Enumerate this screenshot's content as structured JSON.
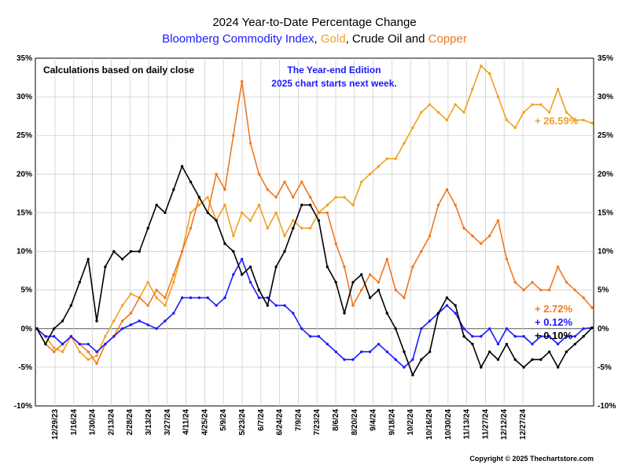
{
  "chart_data": {
    "type": "line",
    "title": "2024 Year-to-Date Percentage Change",
    "subtitle_parts": [
      {
        "text": "Bloomberg Commodity Index",
        "color": "#1a1aff"
      },
      {
        "text": ", ",
        "color": "#000000"
      },
      {
        "text": "Gold",
        "color": "#f0a020"
      },
      {
        "text": ", ",
        "color": "#000000"
      },
      {
        "text": "Crude Oil",
        "color": "#000000"
      },
      {
        "text": " and ",
        "color": "#000000"
      },
      {
        "text": "Copper",
        "color": "#f07820"
      }
    ],
    "annotation_left": "Calculations based on daily close",
    "annotation_center": [
      "The Year-end Edition",
      "2025 chart starts next week."
    ],
    "copyright": "Copyright © 2025 Thechartstore.com",
    "ylim": [
      -10,
      35
    ],
    "ytick_step": 5,
    "ytick_labels": [
      "35%",
      "30%",
      "25%",
      "20%",
      "15%",
      "10%",
      "5%",
      "0%",
      "-5%",
      "-10%"
    ],
    "grid": true,
    "x_tick_labels": [
      "12/29/23",
      "1/16/24",
      "1/30/24",
      "2/13/24",
      "2/28/24",
      "3/13/24",
      "3/27/24",
      "4/11/24",
      "4/25/24",
      "5/9/24",
      "5/23/24",
      "6/7/24",
      "6/24/24",
      "7/9/24",
      "7/23/24",
      "8/6/24",
      "8/20/24",
      "9/4/24",
      "9/18/24",
      "10/2/24",
      "10/16/24",
      "10/30/24",
      "11/13/24",
      "11/27/24",
      "12/12/24",
      "12/27/24"
    ],
    "series": [
      {
        "name": "Gold",
        "color": "#f0a020",
        "end_label": "+ 26.59%",
        "points": [
          [
            0,
            0
          ],
          [
            1,
            -1
          ],
          [
            2,
            -2.5
          ],
          [
            3,
            -3
          ],
          [
            4,
            -1
          ],
          [
            5,
            -3
          ],
          [
            6,
            -4
          ],
          [
            7,
            -3.5
          ],
          [
            8,
            -1
          ],
          [
            9,
            1
          ],
          [
            10,
            3
          ],
          [
            11,
            4.5
          ],
          [
            12,
            4
          ],
          [
            13,
            6
          ],
          [
            14,
            4
          ],
          [
            15,
            3
          ],
          [
            16,
            6
          ],
          [
            17,
            10
          ],
          [
            18,
            15
          ],
          [
            19,
            16
          ],
          [
            20,
            17
          ],
          [
            21,
            14
          ],
          [
            22,
            16
          ],
          [
            23,
            12
          ],
          [
            24,
            15
          ],
          [
            25,
            14
          ],
          [
            26,
            16
          ],
          [
            27,
            13
          ],
          [
            28,
            15
          ],
          [
            29,
            12
          ],
          [
            30,
            14
          ],
          [
            31,
            13
          ],
          [
            32,
            13
          ],
          [
            33,
            15
          ],
          [
            34,
            16
          ],
          [
            35,
            17
          ],
          [
            36,
            17
          ],
          [
            37,
            16
          ],
          [
            38,
            19
          ],
          [
            39,
            20
          ],
          [
            40,
            21
          ],
          [
            41,
            22
          ],
          [
            42,
            22
          ],
          [
            43,
            24
          ],
          [
            44,
            26
          ],
          [
            45,
            28
          ],
          [
            46,
            29
          ],
          [
            47,
            28
          ],
          [
            48,
            27
          ],
          [
            49,
            29
          ],
          [
            50,
            28
          ],
          [
            51,
            31
          ],
          [
            52,
            34
          ],
          [
            53,
            33
          ],
          [
            54,
            30
          ],
          [
            55,
            27
          ],
          [
            56,
            26
          ],
          [
            57,
            28
          ],
          [
            58,
            29
          ],
          [
            59,
            29
          ],
          [
            60,
            28
          ],
          [
            61,
            31
          ],
          [
            62,
            28
          ],
          [
            63,
            27
          ],
          [
            64,
            27
          ],
          [
            65,
            26.59
          ]
        ]
      },
      {
        "name": "Copper",
        "color": "#f07820",
        "end_label": "+ 2.72%",
        "points": [
          [
            0,
            0
          ],
          [
            1,
            -2
          ],
          [
            2,
            -3
          ],
          [
            3,
            -2
          ],
          [
            4,
            -1
          ],
          [
            5,
            -2
          ],
          [
            6,
            -3
          ],
          [
            7,
            -4.5
          ],
          [
            8,
            -2
          ],
          [
            9,
            -1
          ],
          [
            10,
            1
          ],
          [
            11,
            2
          ],
          [
            12,
            4
          ],
          [
            13,
            3
          ],
          [
            14,
            5
          ],
          [
            15,
            4
          ],
          [
            16,
            7
          ],
          [
            17,
            10
          ],
          [
            18,
            13
          ],
          [
            19,
            17
          ],
          [
            20,
            15
          ],
          [
            21,
            20
          ],
          [
            22,
            18
          ],
          [
            23,
            25
          ],
          [
            24,
            32
          ],
          [
            25,
            24
          ],
          [
            26,
            20
          ],
          [
            27,
            18
          ],
          [
            28,
            17
          ],
          [
            29,
            19
          ],
          [
            30,
            17
          ],
          [
            31,
            19
          ],
          [
            32,
            17
          ],
          [
            33,
            15
          ],
          [
            34,
            15
          ],
          [
            35,
            11
          ],
          [
            36,
            8
          ],
          [
            37,
            3
          ],
          [
            38,
            5
          ],
          [
            39,
            7
          ],
          [
            40,
            6
          ],
          [
            41,
            9
          ],
          [
            42,
            5
          ],
          [
            43,
            4
          ],
          [
            44,
            8
          ],
          [
            45,
            10
          ],
          [
            46,
            12
          ],
          [
            47,
            16
          ],
          [
            48,
            18
          ],
          [
            49,
            16
          ],
          [
            50,
            13
          ],
          [
            51,
            12
          ],
          [
            52,
            11
          ],
          [
            53,
            12
          ],
          [
            54,
            14
          ],
          [
            55,
            9
          ],
          [
            56,
            6
          ],
          [
            57,
            5
          ],
          [
            58,
            6
          ],
          [
            59,
            5
          ],
          [
            60,
            5
          ],
          [
            61,
            8
          ],
          [
            62,
            6
          ],
          [
            63,
            5
          ],
          [
            64,
            4
          ],
          [
            65,
            2.72
          ]
        ]
      },
      {
        "name": "Bloomberg Commodity Index",
        "color": "#1a1aff",
        "end_label": "+ 0.12%",
        "points": [
          [
            0,
            0
          ],
          [
            1,
            -1
          ],
          [
            2,
            -1
          ],
          [
            3,
            -2
          ],
          [
            4,
            -1
          ],
          [
            5,
            -2
          ],
          [
            6,
            -2
          ],
          [
            7,
            -3
          ],
          [
            8,
            -2
          ],
          [
            9,
            -1
          ],
          [
            10,
            0
          ],
          [
            11,
            0.5
          ],
          [
            12,
            1
          ],
          [
            13,
            0.5
          ],
          [
            14,
            0
          ],
          [
            15,
            1
          ],
          [
            16,
            2
          ],
          [
            17,
            4
          ],
          [
            18,
            4
          ],
          [
            19,
            4
          ],
          [
            20,
            4
          ],
          [
            21,
            3
          ],
          [
            22,
            4
          ],
          [
            23,
            7
          ],
          [
            24,
            9
          ],
          [
            25,
            6
          ],
          [
            26,
            4
          ],
          [
            27,
            4
          ],
          [
            28,
            3
          ],
          [
            29,
            3
          ],
          [
            30,
            2
          ],
          [
            31,
            0
          ],
          [
            32,
            -1
          ],
          [
            33,
            -1
          ],
          [
            34,
            -2
          ],
          [
            35,
            -3
          ],
          [
            36,
            -4
          ],
          [
            37,
            -4
          ],
          [
            38,
            -3
          ],
          [
            39,
            -3
          ],
          [
            40,
            -2
          ],
          [
            41,
            -3
          ],
          [
            42,
            -4
          ],
          [
            43,
            -5
          ],
          [
            44,
            -4
          ],
          [
            45,
            0
          ],
          [
            46,
            1
          ],
          [
            47,
            2
          ],
          [
            48,
            3
          ],
          [
            49,
            2
          ],
          [
            50,
            0
          ],
          [
            51,
            -1
          ],
          [
            52,
            -1
          ],
          [
            53,
            0
          ],
          [
            54,
            -2
          ],
          [
            55,
            0
          ],
          [
            56,
            -1
          ],
          [
            57,
            -1
          ],
          [
            58,
            -2
          ],
          [
            59,
            -1
          ],
          [
            60,
            -1
          ],
          [
            61,
            -2
          ],
          [
            62,
            -1
          ],
          [
            63,
            -1
          ],
          [
            64,
            0
          ],
          [
            65,
            0.12
          ]
        ]
      },
      {
        "name": "Crude Oil",
        "color": "#000000",
        "end_label": "+ 0.10%",
        "points": [
          [
            0,
            0
          ],
          [
            1,
            -2
          ],
          [
            2,
            0
          ],
          [
            3,
            1
          ],
          [
            4,
            3
          ],
          [
            5,
            6
          ],
          [
            6,
            9
          ],
          [
            7,
            1
          ],
          [
            8,
            8
          ],
          [
            9,
            10
          ],
          [
            10,
            9
          ],
          [
            11,
            10
          ],
          [
            12,
            10
          ],
          [
            13,
            13
          ],
          [
            14,
            16
          ],
          [
            15,
            15
          ],
          [
            16,
            18
          ],
          [
            17,
            21
          ],
          [
            18,
            19
          ],
          [
            19,
            17
          ],
          [
            20,
            15
          ],
          [
            21,
            14
          ],
          [
            22,
            11
          ],
          [
            23,
            10
          ],
          [
            24,
            7
          ],
          [
            25,
            8
          ],
          [
            26,
            5
          ],
          [
            27,
            3
          ],
          [
            28,
            8
          ],
          [
            29,
            10
          ],
          [
            30,
            13
          ],
          [
            31,
            16
          ],
          [
            32,
            16
          ],
          [
            33,
            14
          ],
          [
            34,
            8
          ],
          [
            35,
            6
          ],
          [
            36,
            2
          ],
          [
            37,
            6
          ],
          [
            38,
            7
          ],
          [
            39,
            4
          ],
          [
            40,
            5
          ],
          [
            41,
            2
          ],
          [
            42,
            0
          ],
          [
            43,
            -3
          ],
          [
            44,
            -6
          ],
          [
            45,
            -4
          ],
          [
            46,
            -3
          ],
          [
            47,
            2
          ],
          [
            48,
            4
          ],
          [
            49,
            3
          ],
          [
            50,
            -1
          ],
          [
            51,
            -2
          ],
          [
            52,
            -5
          ],
          [
            53,
            -3
          ],
          [
            54,
            -4
          ],
          [
            55,
            -2
          ],
          [
            56,
            -4
          ],
          [
            57,
            -5
          ],
          [
            58,
            -4
          ],
          [
            59,
            -4
          ],
          [
            60,
            -3
          ],
          [
            61,
            -5
          ],
          [
            62,
            -3
          ],
          [
            63,
            -2
          ],
          [
            64,
            -1
          ],
          [
            65,
            0.1
          ]
        ]
      }
    ]
  }
}
